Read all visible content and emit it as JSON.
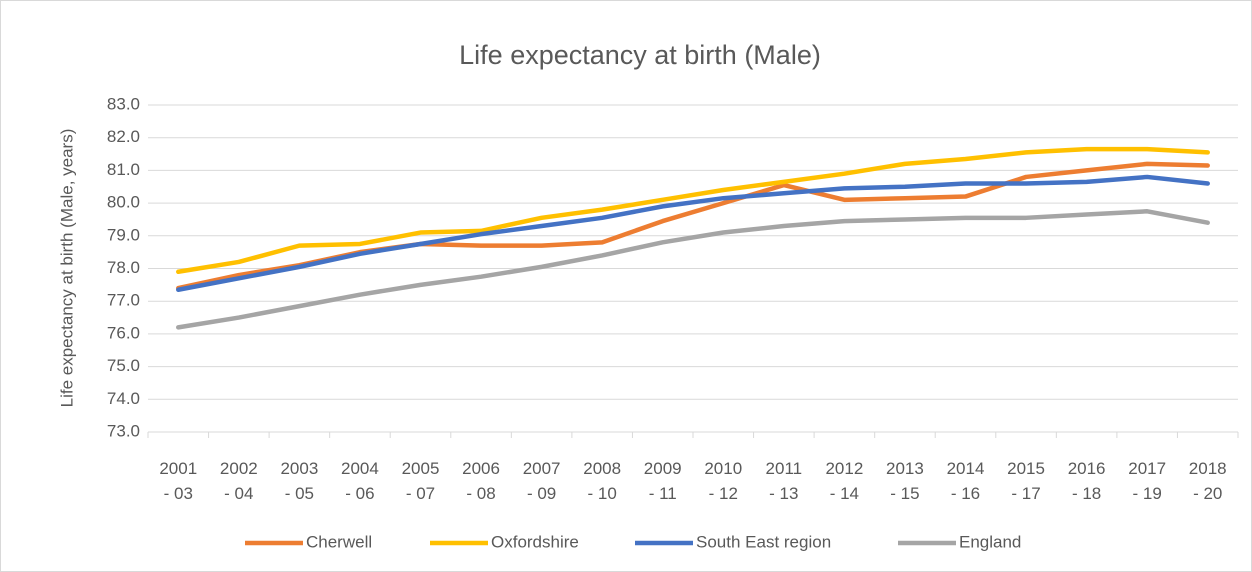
{
  "chart_data": {
    "type": "line",
    "title": "Life expectancy at birth (Male)",
    "y_label": "Life expectancy at birth (Male, years)",
    "categories": [
      "2001 - 03",
      "2002 - 04",
      "2003 - 05",
      "2004 - 06",
      "2005 - 07",
      "2006 - 08",
      "2007 - 09",
      "2008 - 10",
      "2009 - 11",
      "2010 - 12",
      "2011 - 13",
      "2012 - 14",
      "2013 - 15",
      "2014 - 16",
      "2015 - 17",
      "2016 - 18",
      "2017 - 19",
      "2018 - 20"
    ],
    "series": [
      {
        "name": "Cherwell",
        "color": "#ed7d31",
        "values": [
          77.4,
          77.8,
          78.1,
          78.5,
          78.75,
          78.7,
          78.7,
          78.8,
          79.45,
          80.0,
          80.55,
          80.1,
          80.15,
          80.2,
          80.8,
          81.0,
          81.2,
          81.15
        ]
      },
      {
        "name": "Oxfordshire",
        "color": "#ffc000",
        "values": [
          77.9,
          78.2,
          78.7,
          78.75,
          79.1,
          79.15,
          79.55,
          79.8,
          80.1,
          80.4,
          80.65,
          80.9,
          81.2,
          81.35,
          81.55,
          81.65,
          81.65,
          81.55
        ]
      },
      {
        "name": "South East region",
        "color": "#4472c4",
        "values": [
          77.35,
          77.7,
          78.05,
          78.45,
          78.75,
          79.05,
          79.3,
          79.55,
          79.9,
          80.15,
          80.3,
          80.45,
          80.5,
          80.6,
          80.6,
          80.65,
          80.8,
          80.6
        ]
      },
      {
        "name": "England",
        "color": "#a5a5a5",
        "values": [
          76.2,
          76.5,
          76.85,
          77.2,
          77.5,
          77.75,
          78.05,
          78.4,
          78.8,
          79.1,
          79.3,
          79.45,
          79.5,
          79.55,
          79.55,
          79.65,
          79.75,
          79.4
        ]
      }
    ],
    "ylim": [
      73,
      83
    ],
    "yticks": [
      {
        "value": 73,
        "label": "73.0"
      },
      {
        "value": 74,
        "label": "74.0"
      },
      {
        "value": 75,
        "label": "75.0"
      },
      {
        "value": 76,
        "label": "76.0"
      },
      {
        "value": 77,
        "label": "77.0"
      },
      {
        "value": 78,
        "label": "78.0"
      },
      {
        "value": 79,
        "label": "79.0"
      },
      {
        "value": 80,
        "label": "80.0"
      },
      {
        "value": 81,
        "label": "81.0"
      },
      {
        "value": 82,
        "label": "82.0"
      },
      {
        "value": 83,
        "label": "83.0"
      }
    ],
    "grid": true,
    "legend": "bottom"
  }
}
